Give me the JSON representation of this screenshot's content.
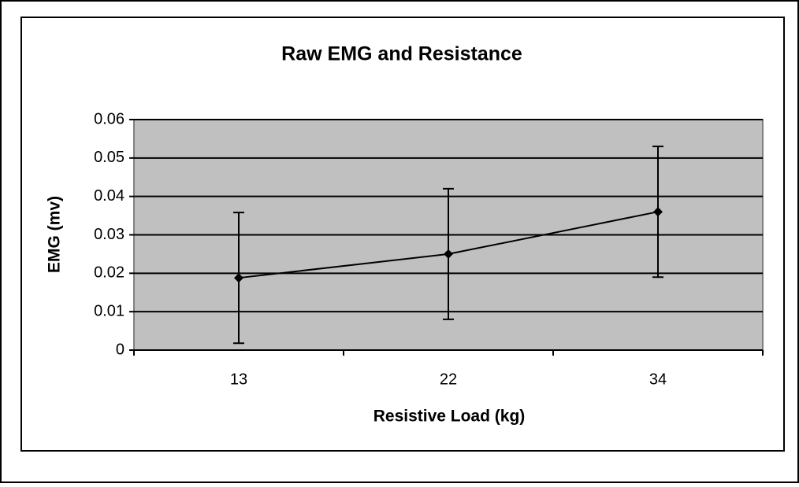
{
  "chart_data": {
    "type": "line",
    "title": "Raw EMG and Resistance",
    "x_label": "Resistive Load (kg)",
    "y_label": "EMG (mv)",
    "categories": [
      "13",
      "22",
      "34"
    ],
    "values": [
      0.0188,
      0.025,
      0.036
    ],
    "errors": [
      0.017,
      0.017,
      0.017
    ],
    "color": "#000000",
    "ylim": [
      0,
      0.06
    ],
    "yticks": [
      0,
      0.01,
      0.02,
      0.03,
      0.04,
      0.05,
      0.06
    ],
    "grid": true
  }
}
